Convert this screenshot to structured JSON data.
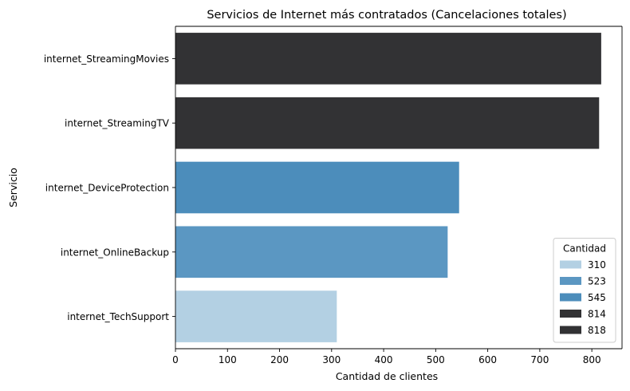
{
  "chart_data": {
    "type": "bar",
    "orientation": "horizontal",
    "title": "Servicios de Internet más contratados (Cancelaciones totales)",
    "xlabel": "Cantidad de clientes",
    "ylabel": "Servicio",
    "categories": [
      "internet_StreamingMovies",
      "internet_StreamingTV",
      "internet_DeviceProtection",
      "internet_OnlineBackup",
      "internet_TechSupport"
    ],
    "values": [
      818,
      814,
      545,
      523,
      310
    ],
    "bar_colors": [
      "#323234",
      "#323234",
      "#4c8dbb",
      "#5b97c2",
      "#b3d0e3"
    ],
    "xlim": [
      0,
      858
    ],
    "xticks": [
      0,
      100,
      200,
      300,
      400,
      500,
      600,
      700,
      800
    ],
    "grid": false,
    "legend": {
      "title": "Cantidad",
      "placement": "lower-right",
      "entries": [
        {
          "label": "310",
          "color": "#b3d0e3"
        },
        {
          "label": "523",
          "color": "#5b97c2"
        },
        {
          "label": "545",
          "color": "#4c8dbb"
        },
        {
          "label": "814",
          "color": "#323234"
        },
        {
          "label": "818",
          "color": "#323234"
        }
      ]
    }
  }
}
